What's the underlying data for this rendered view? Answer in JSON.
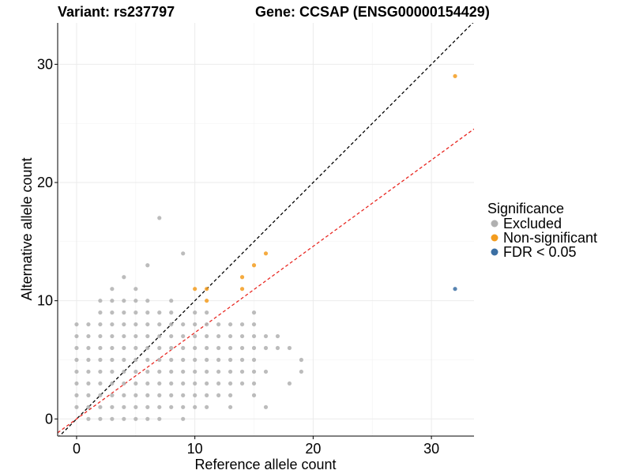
{
  "chart_data": {
    "type": "scatter",
    "title_left": "Variant: rs237797",
    "title_right": "Gene: CCSAP (ENSG00000154429)",
    "xlabel": "Reference allele count",
    "ylabel": "Alternative allele count",
    "xlim": [
      -1.6,
      33.6
    ],
    "ylim": [
      -1.45,
      33.5
    ],
    "x_ticks": [
      0,
      10,
      20,
      30
    ],
    "y_ticks": [
      0,
      10,
      20,
      30
    ],
    "grid": true,
    "legend": {
      "title": "Significance",
      "position": "right",
      "entries": [
        {
          "name": "Excluded",
          "color": "#b0b0b0"
        },
        {
          "name": "Non-significant",
          "color": "#f39c1e"
        },
        {
          "name": "FDR < 0.05",
          "color": "#3b6fa3"
        }
      ]
    },
    "reference_lines": [
      {
        "name": "identity",
        "slope": 1,
        "intercept": 0,
        "color": "#000000",
        "style": "dashed"
      },
      {
        "name": "fit",
        "slope": 0.73,
        "intercept": 0,
        "color": "#e8251f",
        "style": "dashed"
      }
    ],
    "series": [
      {
        "name": "Excluded",
        "color": "#b0b0b0",
        "points": [
          [
            0,
            1
          ],
          [
            0,
            2
          ],
          [
            0,
            3
          ],
          [
            0,
            4
          ],
          [
            0,
            5
          ],
          [
            0,
            6
          ],
          [
            0,
            7
          ],
          [
            0,
            8
          ],
          [
            1,
            0
          ],
          [
            1,
            1
          ],
          [
            1,
            2
          ],
          [
            1,
            3
          ],
          [
            1,
            4
          ],
          [
            1,
            5
          ],
          [
            1,
            6
          ],
          [
            1,
            7
          ],
          [
            1,
            8
          ],
          [
            2,
            0
          ],
          [
            2,
            1
          ],
          [
            2,
            2
          ],
          [
            2,
            3
          ],
          [
            2,
            4
          ],
          [
            2,
            5
          ],
          [
            2,
            6
          ],
          [
            2,
            7
          ],
          [
            2,
            8
          ],
          [
            2,
            9
          ],
          [
            2,
            10
          ],
          [
            3,
            0
          ],
          [
            3,
            1
          ],
          [
            3,
            2
          ],
          [
            3,
            3
          ],
          [
            3,
            4
          ],
          [
            3,
            5
          ],
          [
            3,
            6
          ],
          [
            3,
            7
          ],
          [
            3,
            8
          ],
          [
            3,
            9
          ],
          [
            3,
            10
          ],
          [
            3,
            11
          ],
          [
            4,
            0
          ],
          [
            4,
            1
          ],
          [
            4,
            2
          ],
          [
            4,
            3
          ],
          [
            4,
            4
          ],
          [
            4,
            5
          ],
          [
            4,
            6
          ],
          [
            4,
            7
          ],
          [
            4,
            8
          ],
          [
            4,
            9
          ],
          [
            4,
            10
          ],
          [
            4,
            12
          ],
          [
            5,
            0
          ],
          [
            5,
            1
          ],
          [
            5,
            2
          ],
          [
            5,
            3
          ],
          [
            5,
            4
          ],
          [
            5,
            5
          ],
          [
            5,
            6
          ],
          [
            5,
            7
          ],
          [
            5,
            8
          ],
          [
            5,
            9
          ],
          [
            5,
            10
          ],
          [
            5,
            11
          ],
          [
            6,
            0
          ],
          [
            6,
            1
          ],
          [
            6,
            2
          ],
          [
            6,
            3
          ],
          [
            6,
            4
          ],
          [
            6,
            5
          ],
          [
            6,
            6
          ],
          [
            6,
            7
          ],
          [
            6,
            8
          ],
          [
            6,
            9
          ],
          [
            6,
            10
          ],
          [
            6,
            13
          ],
          [
            7,
            0
          ],
          [
            7,
            1
          ],
          [
            7,
            2
          ],
          [
            7,
            3
          ],
          [
            7,
            4
          ],
          [
            7,
            5
          ],
          [
            7,
            6
          ],
          [
            7,
            7
          ],
          [
            7,
            8
          ],
          [
            7,
            9
          ],
          [
            7,
            17
          ],
          [
            8,
            1
          ],
          [
            8,
            2
          ],
          [
            8,
            3
          ],
          [
            8,
            4
          ],
          [
            8,
            5
          ],
          [
            8,
            6
          ],
          [
            8,
            7
          ],
          [
            8,
            8
          ],
          [
            8,
            9
          ],
          [
            8,
            10
          ],
          [
            9,
            0
          ],
          [
            9,
            1
          ],
          [
            9,
            2
          ],
          [
            9,
            3
          ],
          [
            9,
            4
          ],
          [
            9,
            5
          ],
          [
            9,
            6
          ],
          [
            9,
            7
          ],
          [
            9,
            8
          ],
          [
            9,
            14
          ],
          [
            10,
            1
          ],
          [
            10,
            2
          ],
          [
            10,
            3
          ],
          [
            10,
            4
          ],
          [
            10,
            5
          ],
          [
            10,
            6
          ],
          [
            10,
            7
          ],
          [
            10,
            8
          ],
          [
            10,
            9
          ],
          [
            11,
            1
          ],
          [
            11,
            2
          ],
          [
            11,
            3
          ],
          [
            11,
            4
          ],
          [
            11,
            5
          ],
          [
            11,
            6
          ],
          [
            11,
            7
          ],
          [
            11,
            8
          ],
          [
            11,
            9
          ],
          [
            12,
            2
          ],
          [
            12,
            3
          ],
          [
            12,
            4
          ],
          [
            12,
            5
          ],
          [
            12,
            6
          ],
          [
            12,
            7
          ],
          [
            12,
            8
          ],
          [
            13,
            1
          ],
          [
            13,
            2
          ],
          [
            13,
            3
          ],
          [
            13,
            4
          ],
          [
            13,
            5
          ],
          [
            13,
            6
          ],
          [
            13,
            7
          ],
          [
            13,
            8
          ],
          [
            14,
            3
          ],
          [
            14,
            4
          ],
          [
            14,
            5
          ],
          [
            14,
            6
          ],
          [
            14,
            7
          ],
          [
            14,
            8
          ],
          [
            15,
            2
          ],
          [
            15,
            3
          ],
          [
            15,
            4
          ],
          [
            15,
            5
          ],
          [
            15,
            6
          ],
          [
            15,
            7
          ],
          [
            15,
            8
          ],
          [
            15,
            9
          ],
          [
            16,
            1
          ],
          [
            16,
            4
          ],
          [
            16,
            6
          ],
          [
            16,
            7
          ],
          [
            17,
            6
          ],
          [
            17,
            7
          ],
          [
            18,
            3
          ],
          [
            18,
            6
          ],
          [
            19,
            4
          ],
          [
            19,
            5
          ]
        ]
      },
      {
        "name": "Non-significant",
        "color": "#f39c1e",
        "points": [
          [
            10,
            11
          ],
          [
            11,
            10
          ],
          [
            11,
            11
          ],
          [
            14,
            11
          ],
          [
            14,
            12
          ],
          [
            15,
            13
          ],
          [
            16,
            14
          ],
          [
            32,
            29
          ]
        ]
      },
      {
        "name": "FDR < 0.05",
        "color": "#3b6fa3",
        "points": [
          [
            32,
            11
          ]
        ]
      }
    ]
  }
}
